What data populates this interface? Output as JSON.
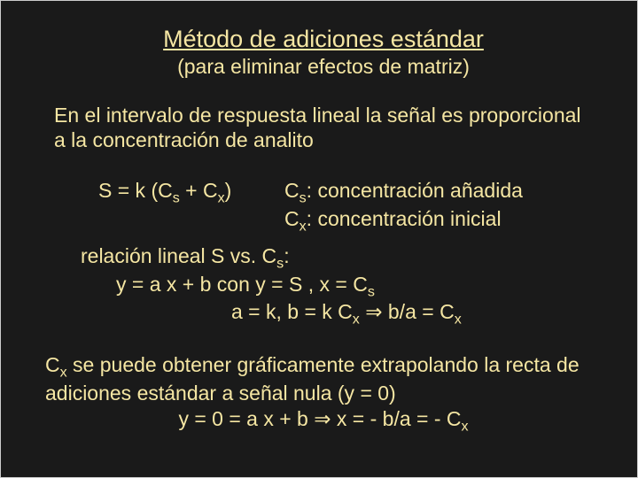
{
  "colors": {
    "background": "#1a1a1a",
    "text": "#f5e6a3",
    "border": "#cccccc"
  },
  "typography": {
    "family": "Comic Sans MS",
    "title_fontsize": 27,
    "body_fontsize": 23
  },
  "title": "Método de adiciones estándar",
  "subtitle": "(para eliminar efectos de matriz)",
  "intro": "En el intervalo de respuesta lineal la señal es proporcional a la concentración de analito",
  "formula_main_before": "S = k (C",
  "formula_main_mid": " + C",
  "formula_main_after": ")",
  "def_cs_before": "C",
  "def_cs_after": ": concentración añadida",
  "def_cx_before": "C",
  "def_cx_after": ": concentración inicial",
  "relation_before": "relación lineal S vs. C",
  "relation_after": ":",
  "eq1_before": "y = a x + b   con   y = S ,  x = C",
  "eq2_before": "a = k,   b = k C",
  "eq2_mid": "   ⇒  b/a = C",
  "conclusion_before": "C",
  "conclusion_after": " se puede obtener gráficamente extrapolando la recta de adiciones estándar a señal nula (y = 0)",
  "conclusion_eq_before": "y = 0 = a x + b ⇒ x = - b/a = - C",
  "sub_s": "s",
  "sub_x": "x"
}
